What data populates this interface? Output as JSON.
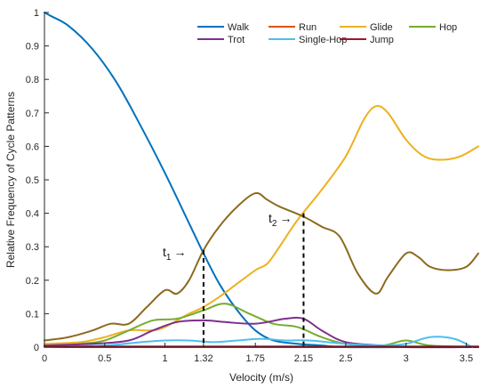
{
  "chart_data": {
    "type": "line",
    "xlabel": "Velocity (m/s)",
    "ylabel": "Relative Frequency of Cycle Patterns",
    "xlim": [
      0,
      3.6
    ],
    "ylim": [
      0,
      1
    ],
    "x_ticks": [
      "0",
      "0.5",
      "1",
      "1.32",
      "1.75",
      "2.15",
      "2.5",
      "3",
      "3.5"
    ],
    "x_tick_values": [
      0,
      0.5,
      1,
      1.32,
      1.75,
      2.15,
      2.5,
      3,
      3.5
    ],
    "y_ticks": [
      "0",
      "0.1",
      "0.2",
      "0.3",
      "0.4",
      "0.5",
      "0.6",
      "0.7",
      "0.8",
      "0.9",
      "1"
    ],
    "y_tick_values": [
      0,
      0.1,
      0.2,
      0.3,
      0.4,
      0.5,
      0.6,
      0.7,
      0.8,
      0.9,
      1
    ],
    "grid": false,
    "legend_position": "top-right",
    "series": [
      {
        "name": "Walk",
        "color": "#0072bd",
        "x": [
          0,
          0.05,
          0.2,
          0.4,
          0.6,
          0.8,
          1.0,
          1.2,
          1.32,
          1.45,
          1.6,
          1.75,
          1.9,
          2.1,
          2.3,
          2.5,
          3.0,
          3.6
        ],
        "y": [
          1.0,
          0.99,
          0.96,
          0.89,
          0.79,
          0.66,
          0.52,
          0.37,
          0.28,
          0.19,
          0.11,
          0.05,
          0.02,
          0.01,
          0.005,
          0.0,
          0.0,
          0.0
        ]
      },
      {
        "name": "Run",
        "color": "#d95319",
        "x": [
          0,
          0.5,
          1.0,
          1.5,
          2.0,
          2.5,
          3.0,
          3.6
        ],
        "y": [
          0.0,
          0.0,
          0.0,
          0.0,
          0.0,
          0.0,
          0.0,
          0.0
        ]
      },
      {
        "name": "Glide",
        "color": "#edb120",
        "x": [
          0,
          0.3,
          0.5,
          0.7,
          0.9,
          1.0,
          1.1,
          1.2,
          1.32,
          1.45,
          1.6,
          1.75,
          1.85,
          1.95,
          2.1,
          2.3,
          2.5,
          2.65,
          2.75,
          2.85,
          3.0,
          3.15,
          3.3,
          3.45,
          3.6
        ],
        "y": [
          0.01,
          0.015,
          0.03,
          0.05,
          0.05,
          0.06,
          0.08,
          0.1,
          0.12,
          0.15,
          0.19,
          0.23,
          0.25,
          0.3,
          0.38,
          0.47,
          0.57,
          0.68,
          0.72,
          0.7,
          0.62,
          0.57,
          0.56,
          0.57,
          0.6
        ]
      },
      {
        "name": "Hop",
        "color": "#77ac30",
        "x": [
          0,
          0.3,
          0.5,
          0.7,
          0.9,
          1.1,
          1.32,
          1.5,
          1.7,
          1.9,
          2.1,
          2.3,
          2.5,
          2.8,
          3.0,
          3.2,
          3.6
        ],
        "y": [
          0.005,
          0.01,
          0.02,
          0.05,
          0.08,
          0.085,
          0.11,
          0.13,
          0.1,
          0.07,
          0.06,
          0.03,
          0.01,
          0.005,
          0.02,
          0.005,
          0.0
        ]
      },
      {
        "name": "Trot",
        "color": "#7e2f8e",
        "x": [
          0,
          0.4,
          0.7,
          0.9,
          1.1,
          1.32,
          1.5,
          1.75,
          2.0,
          2.15,
          2.3,
          2.5,
          2.8,
          3.0,
          3.6
        ],
        "y": [
          0.005,
          0.01,
          0.02,
          0.05,
          0.075,
          0.08,
          0.075,
          0.07,
          0.085,
          0.085,
          0.05,
          0.015,
          0.005,
          0.0,
          0.0
        ]
      },
      {
        "name": "Single-Hop",
        "color": "#4dbeee",
        "x": [
          0,
          0.5,
          0.8,
          1.0,
          1.2,
          1.4,
          1.6,
          1.8,
          2.0,
          2.2,
          2.5,
          2.8,
          3.0,
          3.2,
          3.4,
          3.55
        ],
        "y": [
          0.0,
          0.005,
          0.015,
          0.02,
          0.02,
          0.015,
          0.02,
          0.025,
          0.02,
          0.02,
          0.01,
          0.005,
          0.01,
          0.03,
          0.025,
          0.0
        ]
      },
      {
        "name": "Jump",
        "color": "#a2142f",
        "x": [
          0,
          0.5,
          1.0,
          1.5,
          2.0,
          2.5,
          3.0,
          3.6
        ],
        "y": [
          0.002,
          0.002,
          0.002,
          0.002,
          0.002,
          0.002,
          0.002,
          0.002
        ]
      },
      {
        "name": "",
        "color": "#8c6a1e",
        "x": [
          0,
          0.2,
          0.4,
          0.55,
          0.7,
          0.85,
          1.0,
          1.1,
          1.2,
          1.32,
          1.45,
          1.6,
          1.75,
          1.85,
          1.95,
          2.15,
          2.3,
          2.45,
          2.6,
          2.75,
          2.85,
          3.0,
          3.1,
          3.2,
          3.35,
          3.5,
          3.6
        ],
        "y": [
          0.02,
          0.03,
          0.05,
          0.07,
          0.07,
          0.12,
          0.17,
          0.16,
          0.2,
          0.29,
          0.36,
          0.42,
          0.46,
          0.44,
          0.42,
          0.39,
          0.36,
          0.33,
          0.22,
          0.16,
          0.21,
          0.28,
          0.27,
          0.24,
          0.23,
          0.24,
          0.28
        ]
      }
    ],
    "annotations": [
      {
        "text": "t",
        "subscript": "1",
        "arrow": "→",
        "x": 1.32
      },
      {
        "text": "t",
        "subscript": "2",
        "arrow": "→",
        "x": 2.15
      }
    ]
  }
}
